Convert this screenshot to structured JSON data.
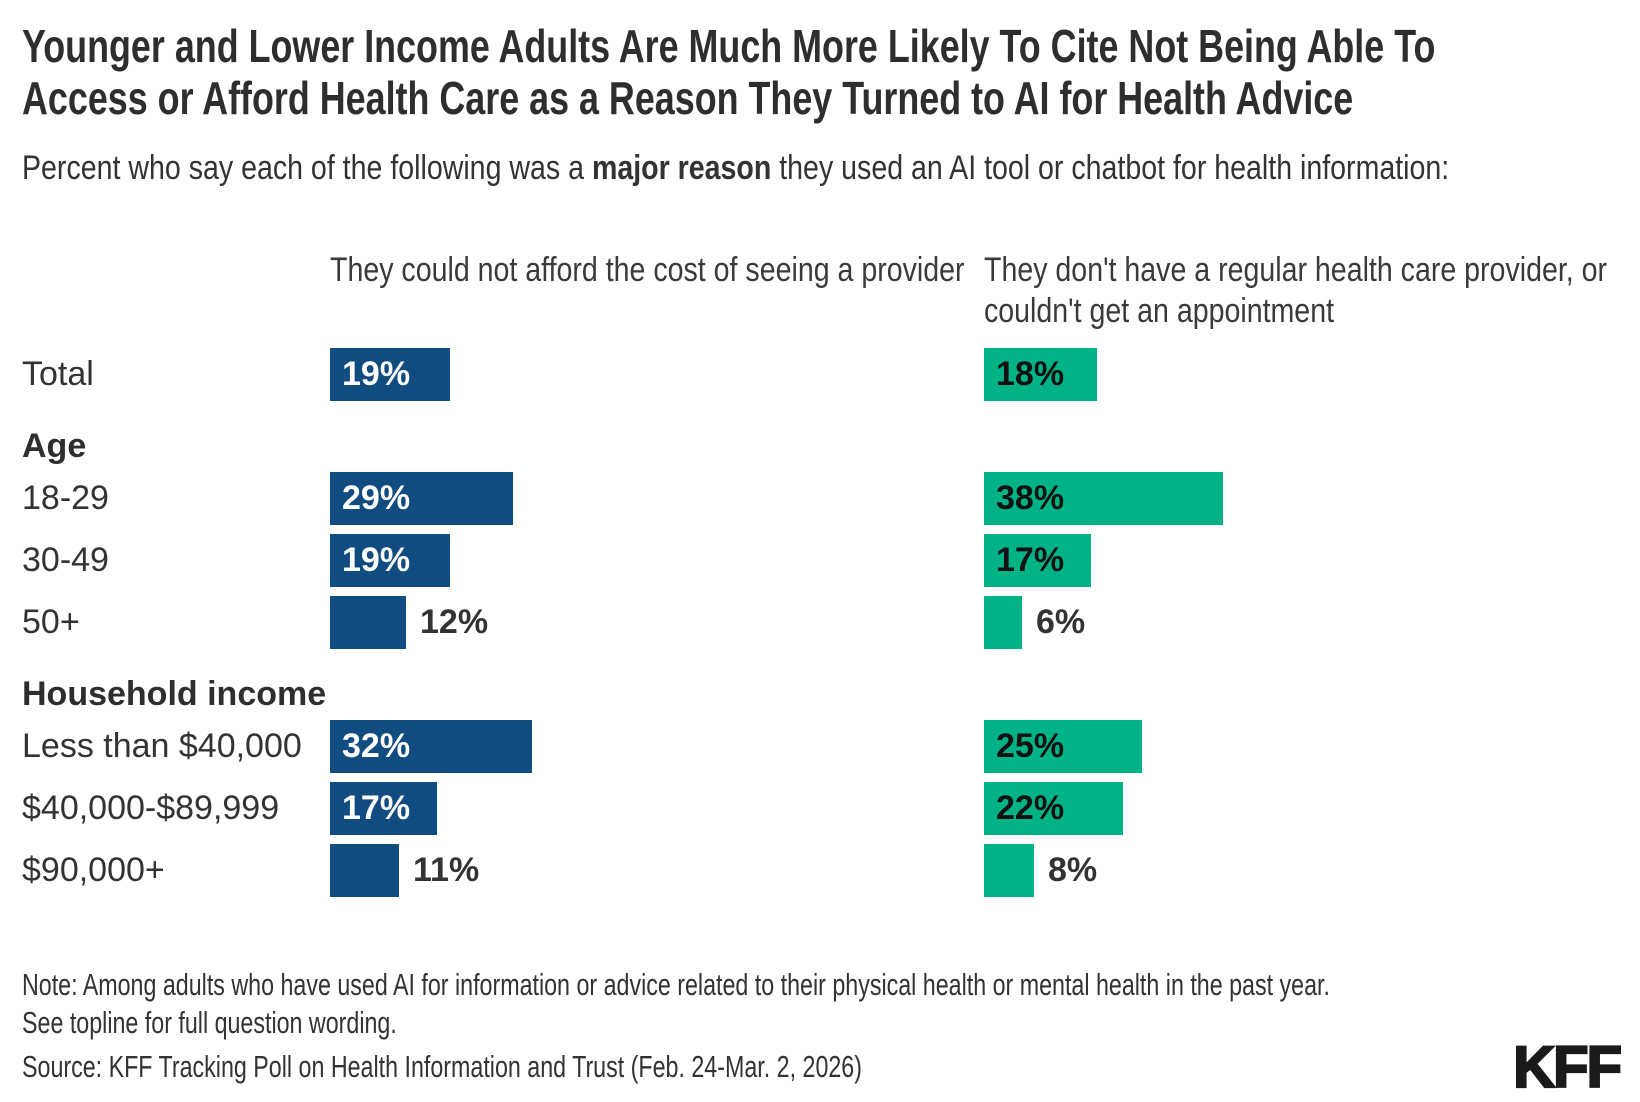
{
  "title": {
    "lines": [
      "Younger and Lower Income Adults Are Much More Likely To Cite Not Being Able To",
      "Access or Afford Health Care as a Reason They Turned to AI for Health Advice"
    ]
  },
  "subtitle": {
    "prefix": "Percent who say each of the following was a ",
    "bold": "major reason",
    "suffix": " they used an AI tool or chatbot for health information:"
  },
  "note": {
    "lines": [
      "Note: Among adults who have used AI for information or advice related to their physical health or mental health in the past year.",
      "See topline for full question wording."
    ]
  },
  "source": "Source: KFF Tracking Poll on Health Information and Trust (Feb. 24-Mar. 2, 2026)",
  "logo": "KFF",
  "colors": {
    "series1": "#104C7F",
    "series2": "#00B386",
    "text": "#333333",
    "value_inside_series1": "#FFFFFF",
    "value_inside_series2": "#111111"
  },
  "chart_data": {
    "type": "bar",
    "orientation": "horizontal",
    "unit": "%",
    "value_axis_max": 40,
    "legend_position": "column-headers-top",
    "grid": false,
    "series": [
      {
        "name": "They could not afford the cost of seeing a provider",
        "color": "#104C7F"
      },
      {
        "name": "They don't have a regular health care provider, or couldn't get an appointment",
        "color": "#00B386"
      }
    ],
    "rows": [
      {
        "type": "data",
        "label": "Total",
        "values": [
          19,
          18
        ]
      },
      {
        "type": "section",
        "label": "Age"
      },
      {
        "type": "data",
        "label": "18-29",
        "values": [
          29,
          38
        ]
      },
      {
        "type": "data",
        "label": "30-49",
        "values": [
          19,
          17
        ]
      },
      {
        "type": "data",
        "label": "50+",
        "values": [
          12,
          6
        ]
      },
      {
        "type": "section",
        "label": "Household income"
      },
      {
        "type": "data",
        "label": "Less than $40,000",
        "values": [
          32,
          25
        ]
      },
      {
        "type": "data",
        "label": "$40,000-$89,999",
        "values": [
          17,
          22
        ]
      },
      {
        "type": "data",
        "label": "$90,000+",
        "values": [
          11,
          8
        ]
      }
    ]
  }
}
